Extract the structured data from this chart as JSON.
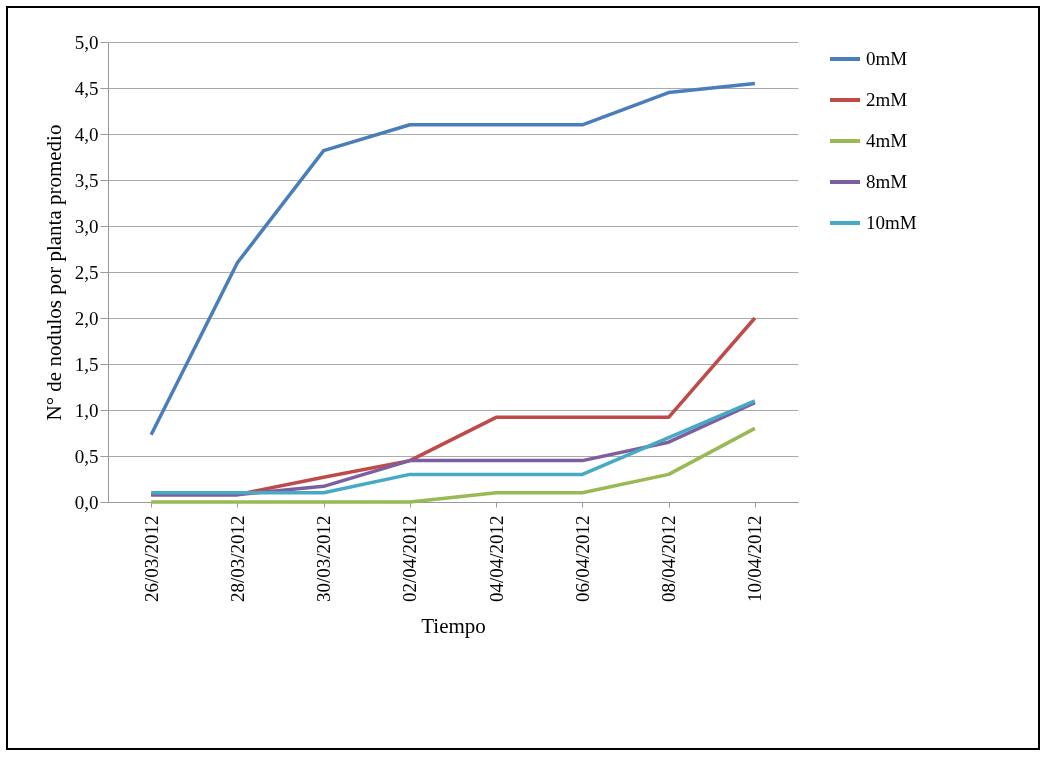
{
  "chart_data": {
    "type": "line",
    "xlabel": "Tiempo",
    "ylabel": "N° de nodulos por planta promedio",
    "categories": [
      "26/03/2012",
      "28/03/2012",
      "30/03/2012",
      "02/04/2012",
      "04/04/2012",
      "06/04/2012",
      "08/04/2012",
      "10/04/2012"
    ],
    "series": [
      {
        "name": "0mM",
        "color": "#4a7ebb",
        "values": [
          0.73,
          2.6,
          3.82,
          4.1,
          4.1,
          4.1,
          4.45,
          4.55
        ]
      },
      {
        "name": "2mM",
        "color": "#be4b48",
        "values": [
          0.08,
          0.08,
          0.27,
          0.45,
          0.92,
          0.92,
          0.92,
          2.0
        ]
      },
      {
        "name": "4mM",
        "color": "#98b954",
        "values": [
          0,
          0,
          0,
          0,
          0.1,
          0.1,
          0.3,
          0.8
        ]
      },
      {
        "name": "8mM",
        "color": "#7d5fa0",
        "values": [
          0.08,
          0.08,
          0.17,
          0.45,
          0.45,
          0.45,
          0.65,
          1.08
        ]
      },
      {
        "name": "10mM",
        "color": "#46aac5",
        "values": [
          0.1,
          0.1,
          0.1,
          0.3,
          0.3,
          0.3,
          0.7,
          1.1
        ]
      }
    ],
    "ylim": [
      0,
      5
    ],
    "yticks": [
      {
        "value": 0,
        "label": "0,0"
      },
      {
        "value": 0.5,
        "label": "0,5"
      },
      {
        "value": 1,
        "label": "1,0"
      },
      {
        "value": 1.5,
        "label": "1,5"
      },
      {
        "value": 2,
        "label": "2,0"
      },
      {
        "value": 2.5,
        "label": "2,5"
      },
      {
        "value": 3,
        "label": "3,0"
      },
      {
        "value": 3.5,
        "label": "3,5"
      },
      {
        "value": 4,
        "label": "4,0"
      },
      {
        "value": 4.5,
        "label": "4,5"
      },
      {
        "value": 5,
        "label": "5,0"
      }
    ],
    "grid": "y",
    "legend": "right",
    "marker": "none",
    "line_style": "solid"
  }
}
